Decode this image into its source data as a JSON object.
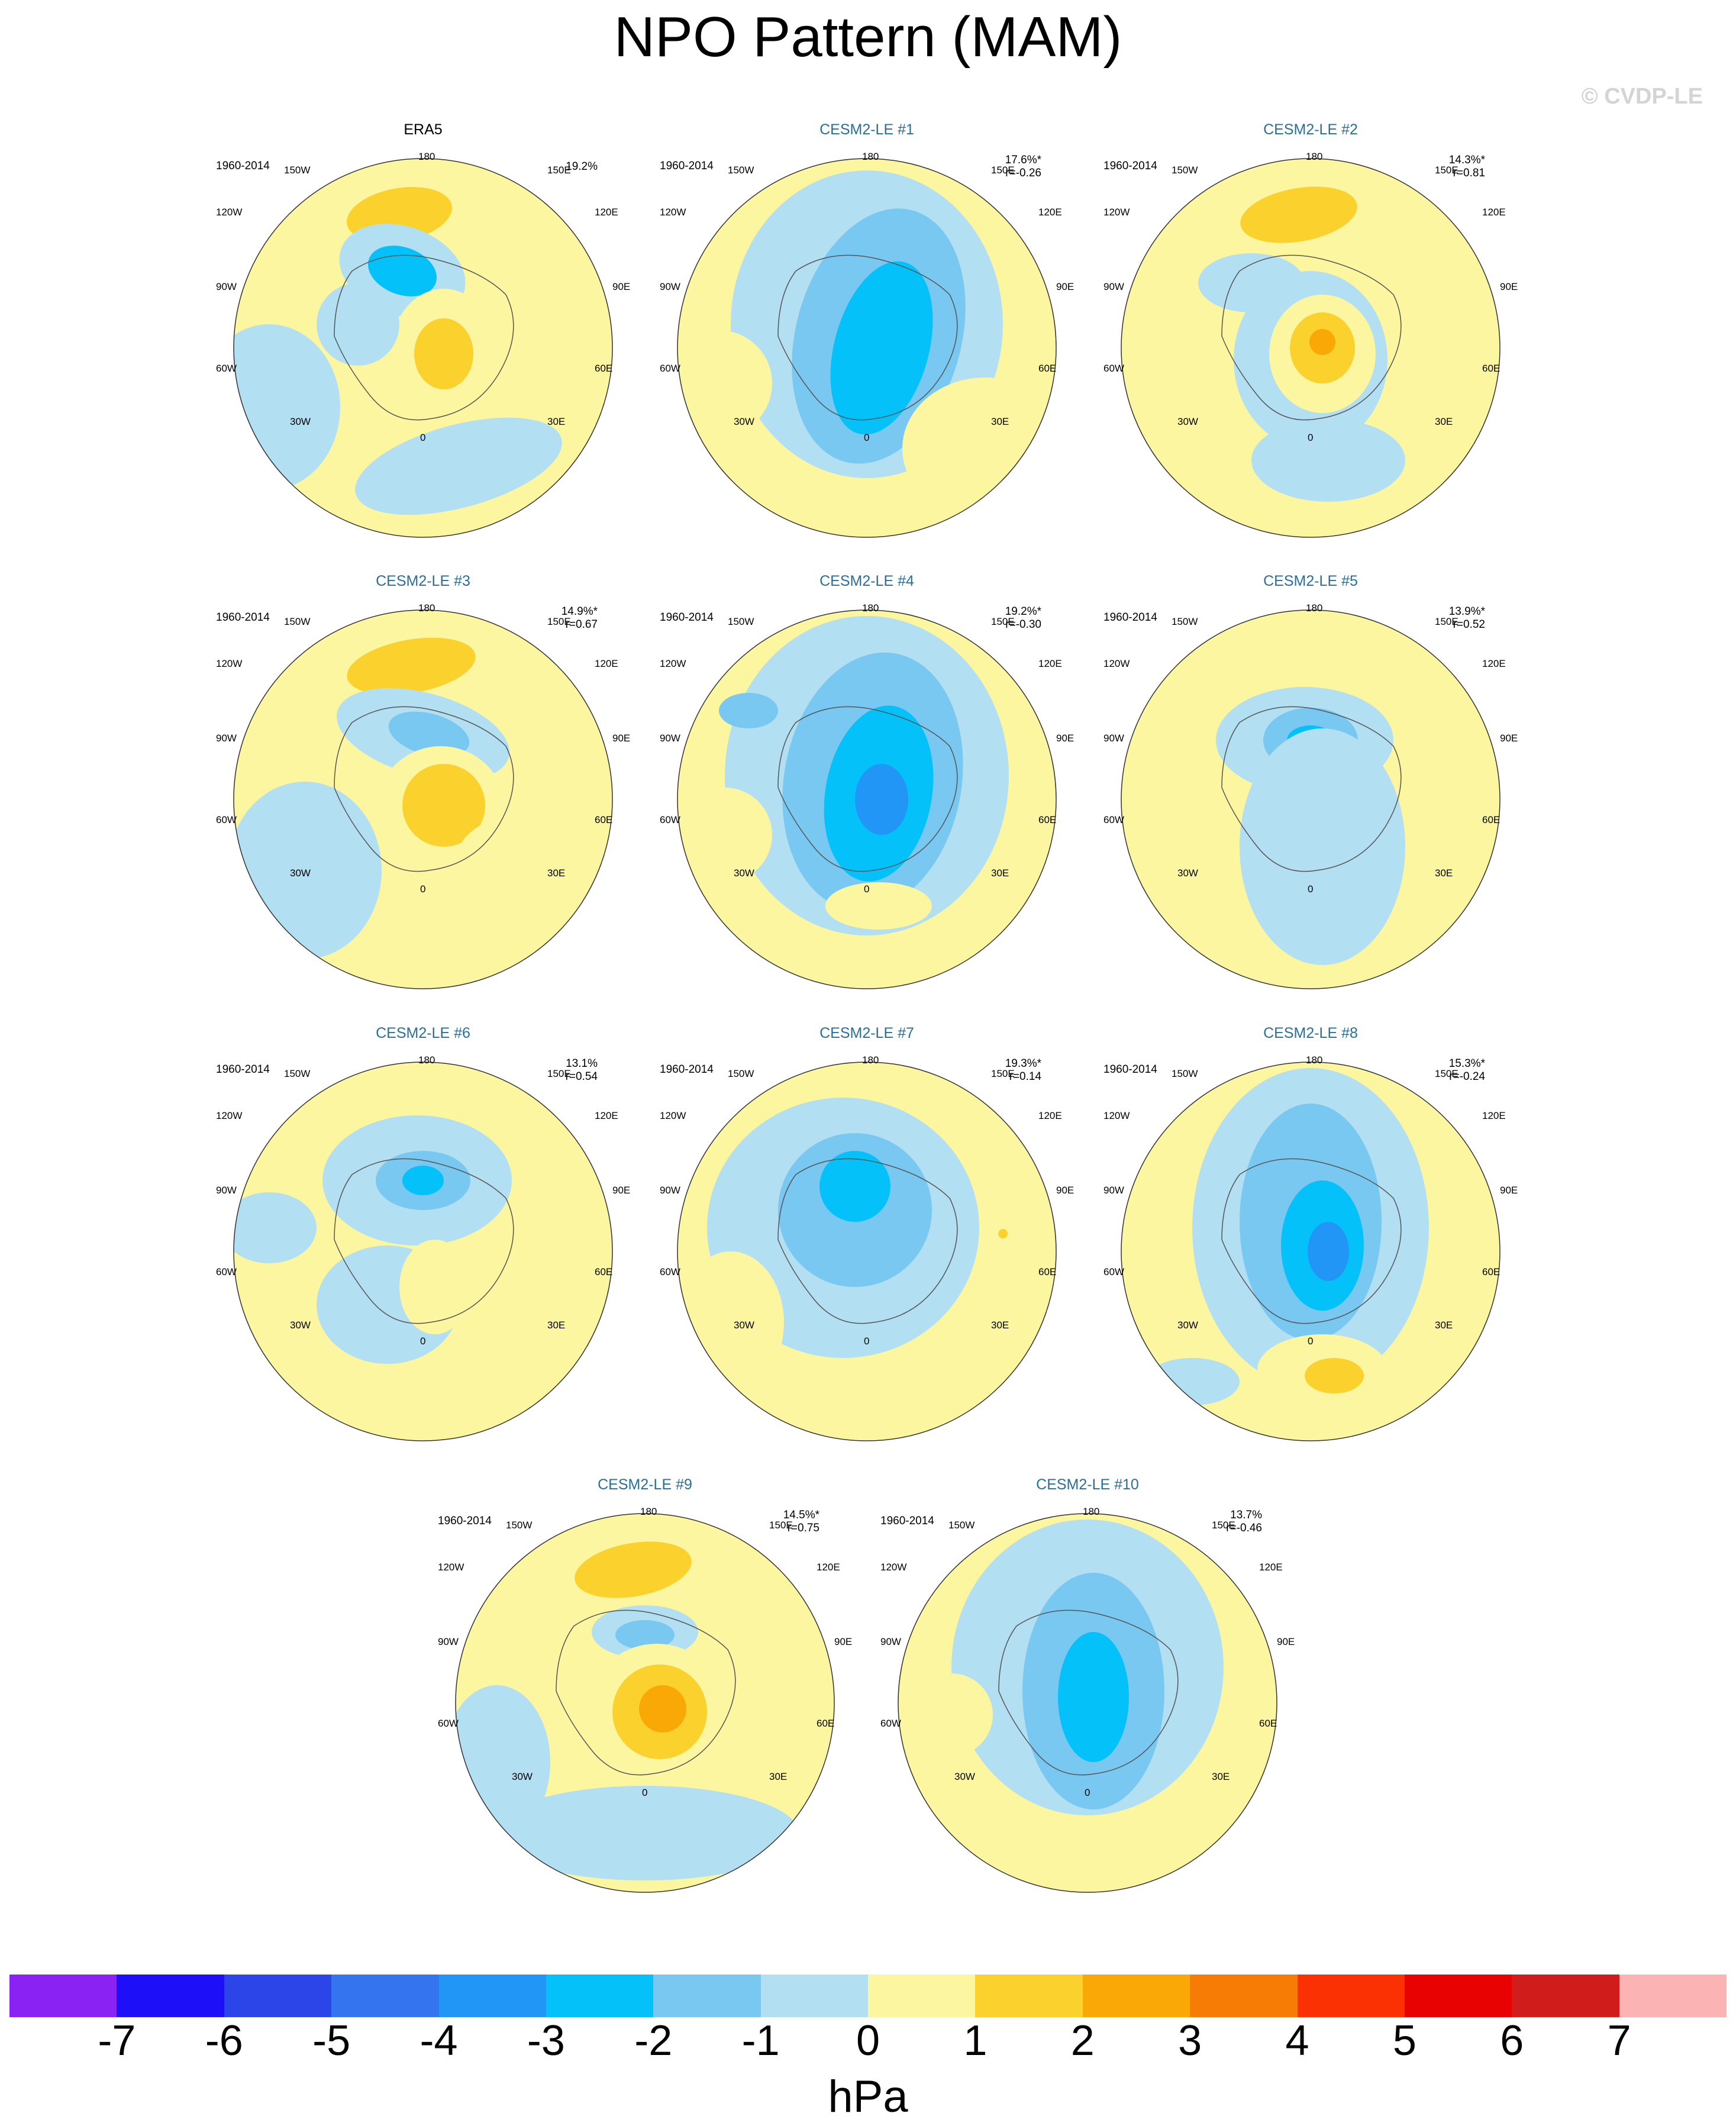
{
  "title": "NPO Pattern (MAM)",
  "copyright": "© CVDP-LE",
  "period": "1960-2014",
  "lon_labels": [
    "180",
    "150E",
    "120E",
    "90E",
    "60E",
    "30E",
    "0",
    "30W",
    "60W",
    "90W",
    "120W",
    "150W"
  ],
  "colors": {
    "ocean_neutral_neg": "#b3dff2",
    "ocean_neutral_pos": "#fdf6a1",
    "title_accent": "#2a6f97"
  },
  "panels": [
    {
      "title": "ERA5",
      "observed": true,
      "pct": "19.2%",
      "r": ""
    },
    {
      "title": "CESM2-LE #1",
      "observed": false,
      "pct": "17.6%*",
      "r": "r=-0.26"
    },
    {
      "title": "CESM2-LE #2",
      "observed": false,
      "pct": "14.3%*",
      "r": "r=0.81"
    },
    {
      "title": "CESM2-LE #3",
      "observed": false,
      "pct": "14.9%*",
      "r": "r=0.67"
    },
    {
      "title": "CESM2-LE #4",
      "observed": false,
      "pct": "19.2%*",
      "r": "r=-0.30"
    },
    {
      "title": "CESM2-LE #5",
      "observed": false,
      "pct": "13.9%*",
      "r": "r=0.52"
    },
    {
      "title": "CESM2-LE #6",
      "observed": false,
      "pct": "13.1%",
      "r": "r=0.54"
    },
    {
      "title": "CESM2-LE #7",
      "observed": false,
      "pct": "19.3%*",
      "r": "r=0.14"
    },
    {
      "title": "CESM2-LE #8",
      "observed": false,
      "pct": "15.3%*",
      "r": "r=-0.24"
    },
    {
      "title": "CESM2-LE #9",
      "observed": false,
      "pct": "14.5%*",
      "r": "r=0.75"
    },
    {
      "title": "CESM2-LE #10",
      "observed": false,
      "pct": "13.7%",
      "r": "r=-0.46"
    }
  ],
  "colorbar": {
    "labels": [
      "-7",
      "-6",
      "-5",
      "-4",
      "-3",
      "-2",
      "-1",
      "0",
      "1",
      "2",
      "3",
      "4",
      "5",
      "6",
      "7"
    ],
    "colors": [
      "#8a22f4",
      "#1d10f8",
      "#2c45e8",
      "#3474ef",
      "#2196f7",
      "#04c1fa",
      "#79c8f1",
      "#b3dff2",
      "#fdf6a1",
      "#fbd22d",
      "#f9a806",
      "#f77c05",
      "#fb3003",
      "#e80202",
      "#d11c1c",
      "#fbb3b3"
    ],
    "units": "hPa"
  }
}
